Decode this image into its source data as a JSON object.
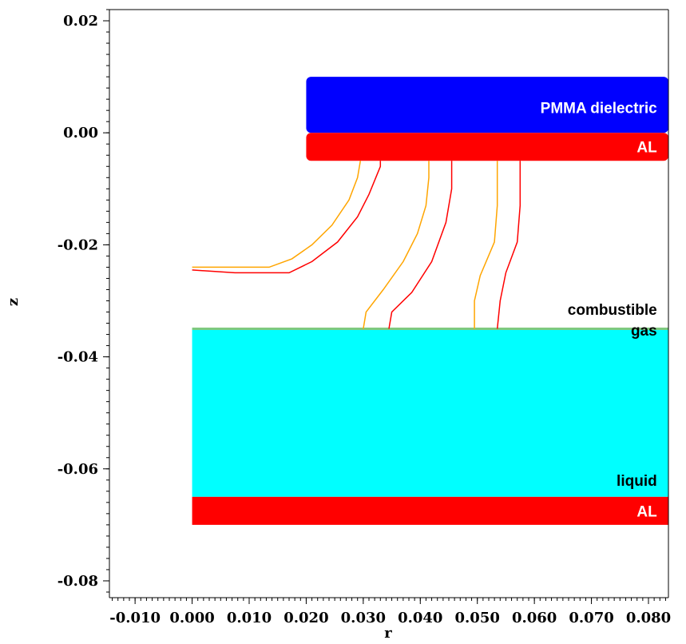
{
  "chart_data": {
    "type": "contour",
    "xlabel": "r",
    "ylabel": "z",
    "xlim": [
      -0.0145,
      0.0835
    ],
    "ylim": [
      -0.083,
      0.022
    ],
    "x_ticks": [
      -0.01,
      0.0,
      0.01,
      0.02,
      0.03,
      0.04,
      0.05,
      0.06,
      0.07,
      0.08
    ],
    "x_tick_labels": [
      "-0.010",
      "0.000",
      "0.010",
      "0.020",
      "0.030",
      "0.040",
      "0.050",
      "0.060",
      "0.070",
      "0.080"
    ],
    "y_ticks": [
      0.02,
      0.0,
      -0.02,
      -0.04,
      -0.06,
      -0.08
    ],
    "y_tick_labels": [
      "0.02",
      "0.00",
      "-0.02",
      "-0.04",
      "-0.06",
      "-0.08"
    ],
    "regions": [
      {
        "name": "PMMA dielectric",
        "label": "PMMA dielectric",
        "color": "#0000ff",
        "r": [
          0.02,
          0.0835
        ],
        "z": [
          0.0,
          0.01
        ],
        "rounded": true,
        "label_at": [
          0.0815,
          0.0045
        ]
      },
      {
        "name": "AL top",
        "label": "AL",
        "color": "#ff0000",
        "r": [
          0.02,
          0.0835
        ],
        "z": [
          -0.005,
          0.0
        ],
        "rounded": true,
        "label_at": [
          0.0815,
          -0.0025
        ]
      },
      {
        "name": "liquid",
        "label": "liquid",
        "color": "#00ffff",
        "r": [
          0.0,
          0.0835
        ],
        "z": [
          -0.065,
          -0.035
        ],
        "rounded": false,
        "label_at": [
          0.0815,
          -0.062
        ]
      },
      {
        "name": "AL bottom",
        "label": "AL",
        "color": "#ff0000",
        "r": [
          0.0,
          0.0835
        ],
        "z": [
          -0.07,
          -0.065
        ],
        "rounded": false,
        "label_at": [
          0.0815,
          -0.0675
        ]
      }
    ],
    "interface": {
      "z": -0.035,
      "r": [
        0.0,
        0.0835
      ],
      "color": "#7fc97f"
    },
    "gas_label": {
      "lines": [
        "combustible",
        "gas"
      ],
      "color": "#000000",
      "at": [
        0.0815,
        -0.0315
      ]
    },
    "contours": [
      {
        "color": "#ffa500",
        "points": [
          [
            0.0,
            -0.024
          ],
          [
            0.003,
            -0.024
          ],
          [
            0.009,
            -0.024
          ],
          [
            0.0135,
            -0.024
          ],
          [
            0.0175,
            -0.0225
          ],
          [
            0.021,
            -0.02
          ],
          [
            0.0245,
            -0.0165
          ],
          [
            0.0275,
            -0.012
          ],
          [
            0.029,
            -0.008
          ],
          [
            0.0295,
            -0.005
          ]
        ]
      },
      {
        "color": "#ff0000",
        "points": [
          [
            0.0,
            -0.0245
          ],
          [
            0.0075,
            -0.025
          ],
          [
            0.017,
            -0.025
          ],
          [
            0.021,
            -0.023
          ],
          [
            0.0255,
            -0.0195
          ],
          [
            0.029,
            -0.015
          ],
          [
            0.031,
            -0.011
          ],
          [
            0.033,
            -0.006
          ],
          [
            0.033,
            -0.005
          ]
        ]
      },
      {
        "color": "#ffa500",
        "points": [
          [
            0.03,
            -0.035
          ],
          [
            0.0305,
            -0.032
          ],
          [
            0.0335,
            -0.028
          ],
          [
            0.037,
            -0.023
          ],
          [
            0.0395,
            -0.018
          ],
          [
            0.041,
            -0.013
          ],
          [
            0.0415,
            -0.008
          ],
          [
            0.0415,
            -0.005
          ]
        ]
      },
      {
        "color": "#ff0000",
        "points": [
          [
            0.0345,
            -0.035
          ],
          [
            0.035,
            -0.032
          ],
          [
            0.0385,
            -0.0285
          ],
          [
            0.042,
            -0.023
          ],
          [
            0.0445,
            -0.016
          ],
          [
            0.0455,
            -0.01
          ],
          [
            0.0455,
            -0.005
          ]
        ]
      },
      {
        "color": "#ffa500",
        "points": [
          [
            0.0495,
            -0.035
          ],
          [
            0.0495,
            -0.03
          ],
          [
            0.0505,
            -0.0255
          ],
          [
            0.053,
            -0.0195
          ],
          [
            0.0535,
            -0.013
          ],
          [
            0.0535,
            -0.008
          ],
          [
            0.0535,
            -0.005
          ]
        ]
      },
      {
        "color": "#ff0000",
        "points": [
          [
            0.0535,
            -0.035
          ],
          [
            0.054,
            -0.03
          ],
          [
            0.055,
            -0.025
          ],
          [
            0.057,
            -0.0195
          ],
          [
            0.0575,
            -0.013
          ],
          [
            0.0575,
            -0.008
          ],
          [
            0.0575,
            -0.005
          ]
        ]
      }
    ]
  }
}
